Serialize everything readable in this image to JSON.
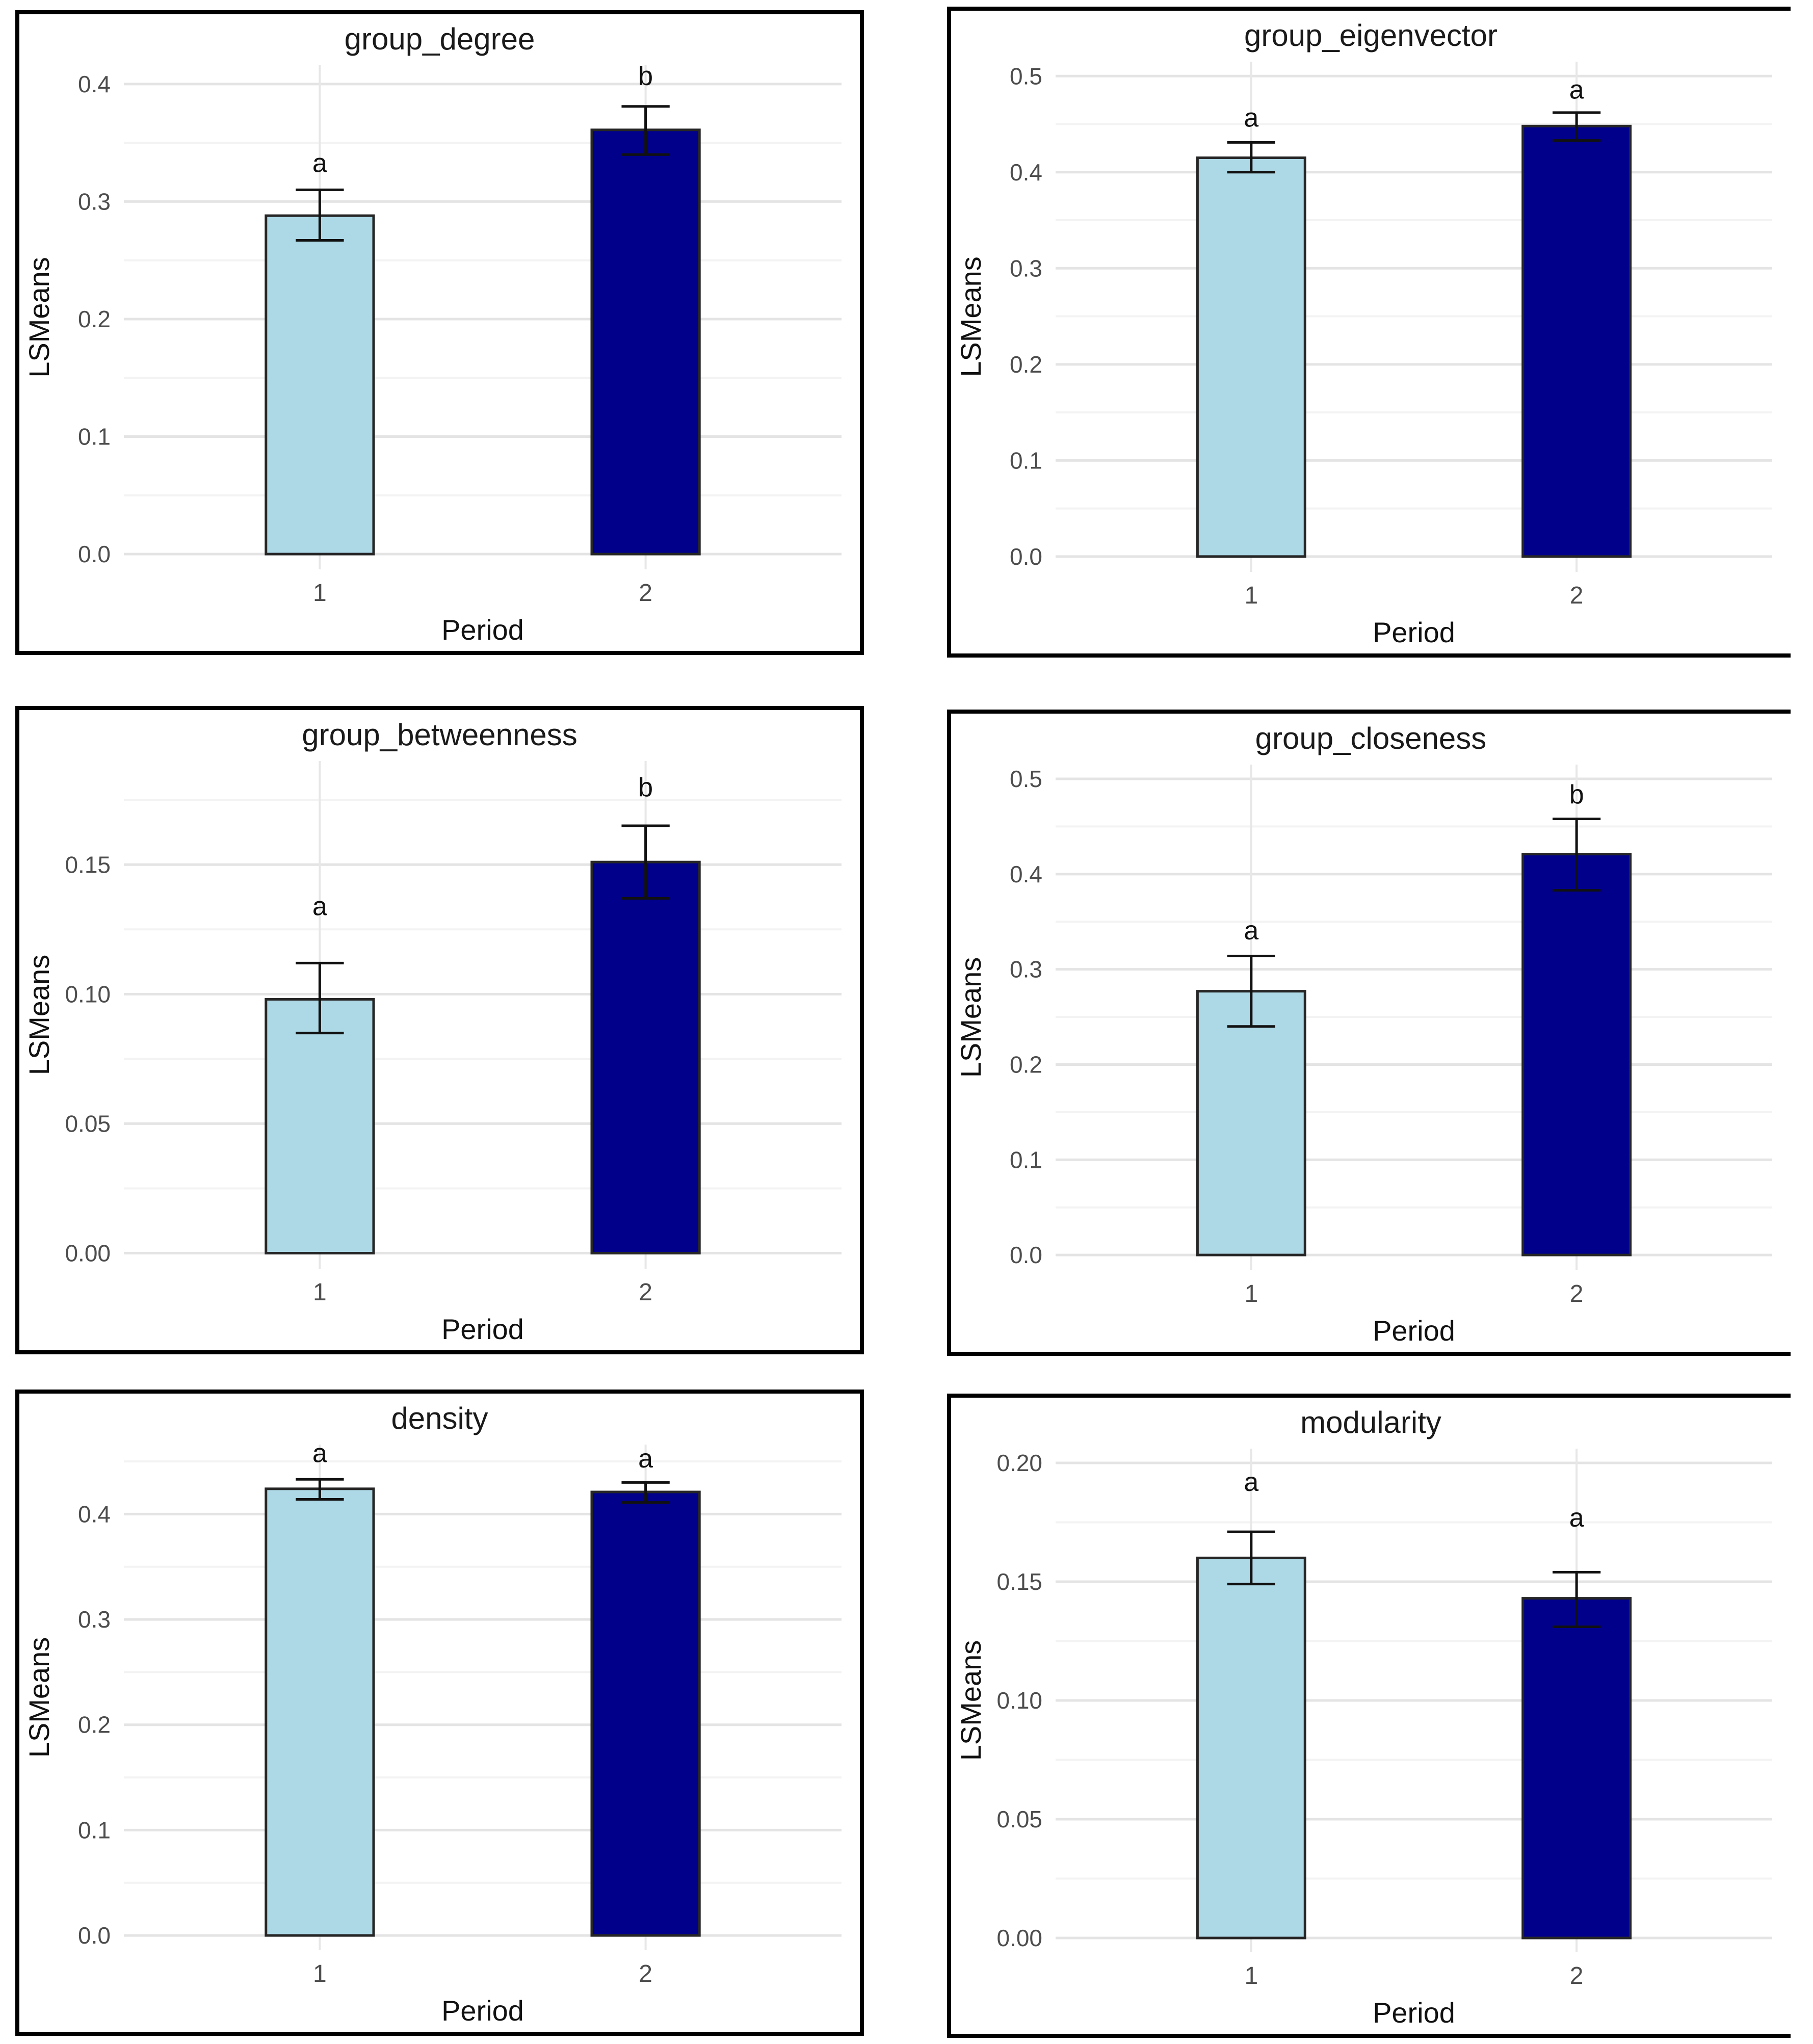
{
  "figure": {
    "description": "Grid of six bar charts of LSMeans by Period with 95% error bars and significance letters",
    "xlabel": "Period",
    "ylabel": "LSMeans",
    "categories": [
      "1",
      "2"
    ]
  },
  "style_colors": {
    "bar_fill_period1": "#ADD8E6",
    "bar_fill_period2": "#00008B",
    "bar_stroke": "#262626",
    "error_bar": "#111111",
    "major_grid": "#e4e4e4",
    "minor_grid": "#f3f3f3",
    "vertical_grid": "#e7e7e7",
    "tick_label": "#4d4d4d",
    "axis_title": "#111111",
    "panel_border": "#000000"
  },
  "chart_data": [
    {
      "type": "bar",
      "title": "group_degree",
      "xlabel": "Period",
      "ylabel": "LSMeans",
      "categories": [
        "1",
        "2"
      ],
      "series": [
        {
          "period": "1",
          "mean": 0.288,
          "ci_low": 0.267,
          "ci_high": 0.31,
          "sig_letter": "a",
          "letter_y": 0.333
        },
        {
          "period": "2",
          "mean": 0.361,
          "ci_low": 0.34,
          "ci_high": 0.381,
          "sig_letter": "b",
          "letter_y": 0.407
        }
      ],
      "yticks": [
        0.0,
        0.1,
        0.2,
        0.3,
        0.4
      ],
      "ytick_labels": [
        "0.0",
        "0.1",
        "0.2",
        "0.3",
        "0.4"
      ],
      "minor_step": 0.05,
      "ylim": [
        -0.013,
        0.416
      ],
      "grid": true,
      "legend": "none"
    },
    {
      "type": "bar",
      "title": "group_eigenvector",
      "xlabel": "Period",
      "ylabel": "LSMeans",
      "categories": [
        "1",
        "2"
      ],
      "series": [
        {
          "period": "1",
          "mean": 0.415,
          "ci_low": 0.4,
          "ci_high": 0.431,
          "sig_letter": "a",
          "letter_y": 0.457
        },
        {
          "period": "2",
          "mean": 0.448,
          "ci_low": 0.433,
          "ci_high": 0.462,
          "sig_letter": "a",
          "letter_y": 0.486
        }
      ],
      "yticks": [
        0.0,
        0.1,
        0.2,
        0.3,
        0.4,
        0.5
      ],
      "ytick_labels": [
        "0.0",
        "0.1",
        "0.2",
        "0.3",
        "0.4",
        "0.5"
      ],
      "minor_step": 0.05,
      "ylim": [
        -0.016,
        0.515
      ],
      "grid": true,
      "legend": "none"
    },
    {
      "type": "bar",
      "title": "group_betweenness",
      "xlabel": "Period",
      "ylabel": "LSMeans",
      "categories": [
        "1",
        "2"
      ],
      "series": [
        {
          "period": "1",
          "mean": 0.098,
          "ci_low": 0.085,
          "ci_high": 0.112,
          "sig_letter": "a",
          "letter_y": 0.134
        },
        {
          "period": "2",
          "mean": 0.151,
          "ci_low": 0.137,
          "ci_high": 0.165,
          "sig_letter": "b",
          "letter_y": 0.18
        }
      ],
      "yticks": [
        0.0,
        0.05,
        0.1,
        0.15
      ],
      "ytick_labels": [
        "0.00",
        "0.05",
        "0.10",
        "0.15"
      ],
      "minor_step": 0.025,
      "ylim": [
        -0.006,
        0.19
      ],
      "grid": true,
      "legend": "none"
    },
    {
      "type": "bar",
      "title": "group_closeness",
      "xlabel": "Period",
      "ylabel": "LSMeans",
      "categories": [
        "1",
        "2"
      ],
      "series": [
        {
          "period": "1",
          "mean": 0.277,
          "ci_low": 0.24,
          "ci_high": 0.314,
          "sig_letter": "a",
          "letter_y": 0.341
        },
        {
          "period": "2",
          "mean": 0.421,
          "ci_low": 0.383,
          "ci_high": 0.458,
          "sig_letter": "b",
          "letter_y": 0.484
        }
      ],
      "yticks": [
        0.0,
        0.1,
        0.2,
        0.3,
        0.4,
        0.5
      ],
      "ytick_labels": [
        "0.0",
        "0.1",
        "0.2",
        "0.3",
        "0.4",
        "0.5"
      ],
      "minor_step": 0.05,
      "ylim": [
        -0.016,
        0.515
      ],
      "grid": true,
      "legend": "none"
    },
    {
      "type": "bar",
      "title": "density",
      "xlabel": "Period",
      "ylabel": "LSMeans",
      "categories": [
        "1",
        "2"
      ],
      "series": [
        {
          "period": "1",
          "mean": 0.424,
          "ci_low": 0.414,
          "ci_high": 0.433,
          "sig_letter": "a",
          "letter_y": 0.458
        },
        {
          "period": "2",
          "mean": 0.421,
          "ci_low": 0.411,
          "ci_high": 0.43,
          "sig_letter": "a",
          "letter_y": 0.453
        }
      ],
      "yticks": [
        0.0,
        0.1,
        0.2,
        0.3,
        0.4
      ],
      "ytick_labels": [
        "0.0",
        "0.1",
        "0.2",
        "0.3",
        "0.4"
      ],
      "minor_step": 0.05,
      "ylim": [
        -0.014,
        0.466
      ],
      "grid": true,
      "legend": "none"
    },
    {
      "type": "bar",
      "title": "modularity",
      "xlabel": "Period",
      "ylabel": "LSMeans",
      "categories": [
        "1",
        "2"
      ],
      "series": [
        {
          "period": "1",
          "mean": 0.16,
          "ci_low": 0.149,
          "ci_high": 0.171,
          "sig_letter": "a",
          "letter_y": 0.192
        },
        {
          "period": "2",
          "mean": 0.143,
          "ci_low": 0.131,
          "ci_high": 0.154,
          "sig_letter": "a",
          "letter_y": 0.177
        }
      ],
      "yticks": [
        0.0,
        0.05,
        0.1,
        0.15,
        0.2
      ],
      "ytick_labels": [
        "0.00",
        "0.05",
        "0.10",
        "0.15",
        "0.20"
      ],
      "minor_step": 0.025,
      "ylim": [
        -0.006,
        0.206
      ],
      "grid": true,
      "legend": "none"
    }
  ]
}
